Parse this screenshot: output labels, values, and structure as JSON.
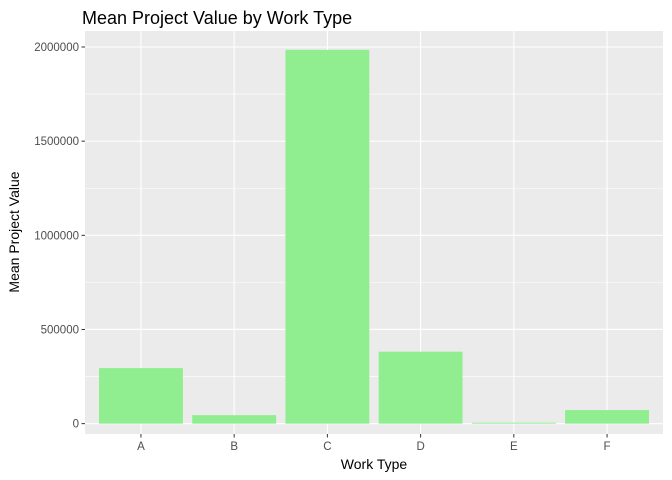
{
  "chart_data": {
    "type": "bar",
    "title": "Mean Project Value by Work Type",
    "xlabel": "Work Type",
    "ylabel": "Mean Project Value",
    "categories": [
      "A",
      "B",
      "C",
      "D",
      "E",
      "F"
    ],
    "values": [
      295000,
      45000,
      1985000,
      382000,
      5000,
      72000
    ],
    "ylim": [
      -55000,
      2085000
    ],
    "yticks": [
      0,
      500000,
      1000000,
      1500000,
      2000000
    ],
    "ytick_labels": [
      "0",
      "500000",
      "1000000",
      "1500000",
      "2000000"
    ],
    "grid": true,
    "legend": "none",
    "colors": {
      "bar": "#90EE90",
      "panel": "#EBEBEB",
      "grid_major": "#FFFFFF",
      "tick_text": "#4D4D4D",
      "tick_mark": "#333333"
    }
  }
}
